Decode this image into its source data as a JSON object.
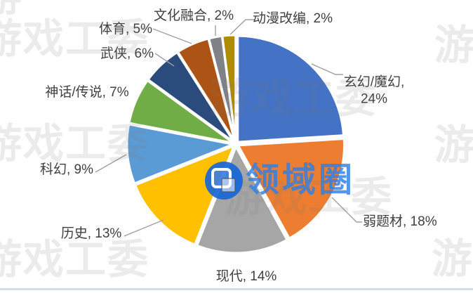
{
  "chart_data": {
    "type": "pie",
    "title": "",
    "direction": "clockwise",
    "start_angle_deg": 0,
    "legend": "none",
    "data_labels": "outside with leader lines, format: category, percent",
    "categories": [
      "玄幻/魔幻",
      "弱题材",
      "现代",
      "历史",
      "科幻",
      "神话/传说",
      "武侠",
      "体育",
      "文化融合",
      "动漫改编"
    ],
    "values": [
      24,
      18,
      14,
      13,
      9,
      7,
      6,
      5,
      2,
      2
    ],
    "unit": "%",
    "colors": [
      "#4472C4",
      "#ED7D31",
      "#A6A6A6",
      "#FFC000",
      "#5B9BD5",
      "#70AD47",
      "#2A4B7C",
      "#AC5415",
      "#7F8287",
      "#AF8D00"
    ],
    "labels": [
      "玄幻/魔幻, 24%",
      "弱题材, 18%",
      "现代, 14%",
      "历史, 13%",
      "科幻, 9%",
      "神话/传说, 7%",
      "武侠, 6%",
      "体育, 5%",
      "文化融合, 2%",
      "动漫改编, 2%"
    ]
  },
  "watermark": {
    "text": "游戏工委",
    "corner_text": "游"
  },
  "logo": {
    "text": "领域圈"
  },
  "style": {
    "leader_line_color": "#a0a0a0",
    "label_text_color": "#404040",
    "slice_border_color": "#ffffff",
    "logo_blue": "#1866d8",
    "bottom_line_color": "#d8dee9"
  }
}
